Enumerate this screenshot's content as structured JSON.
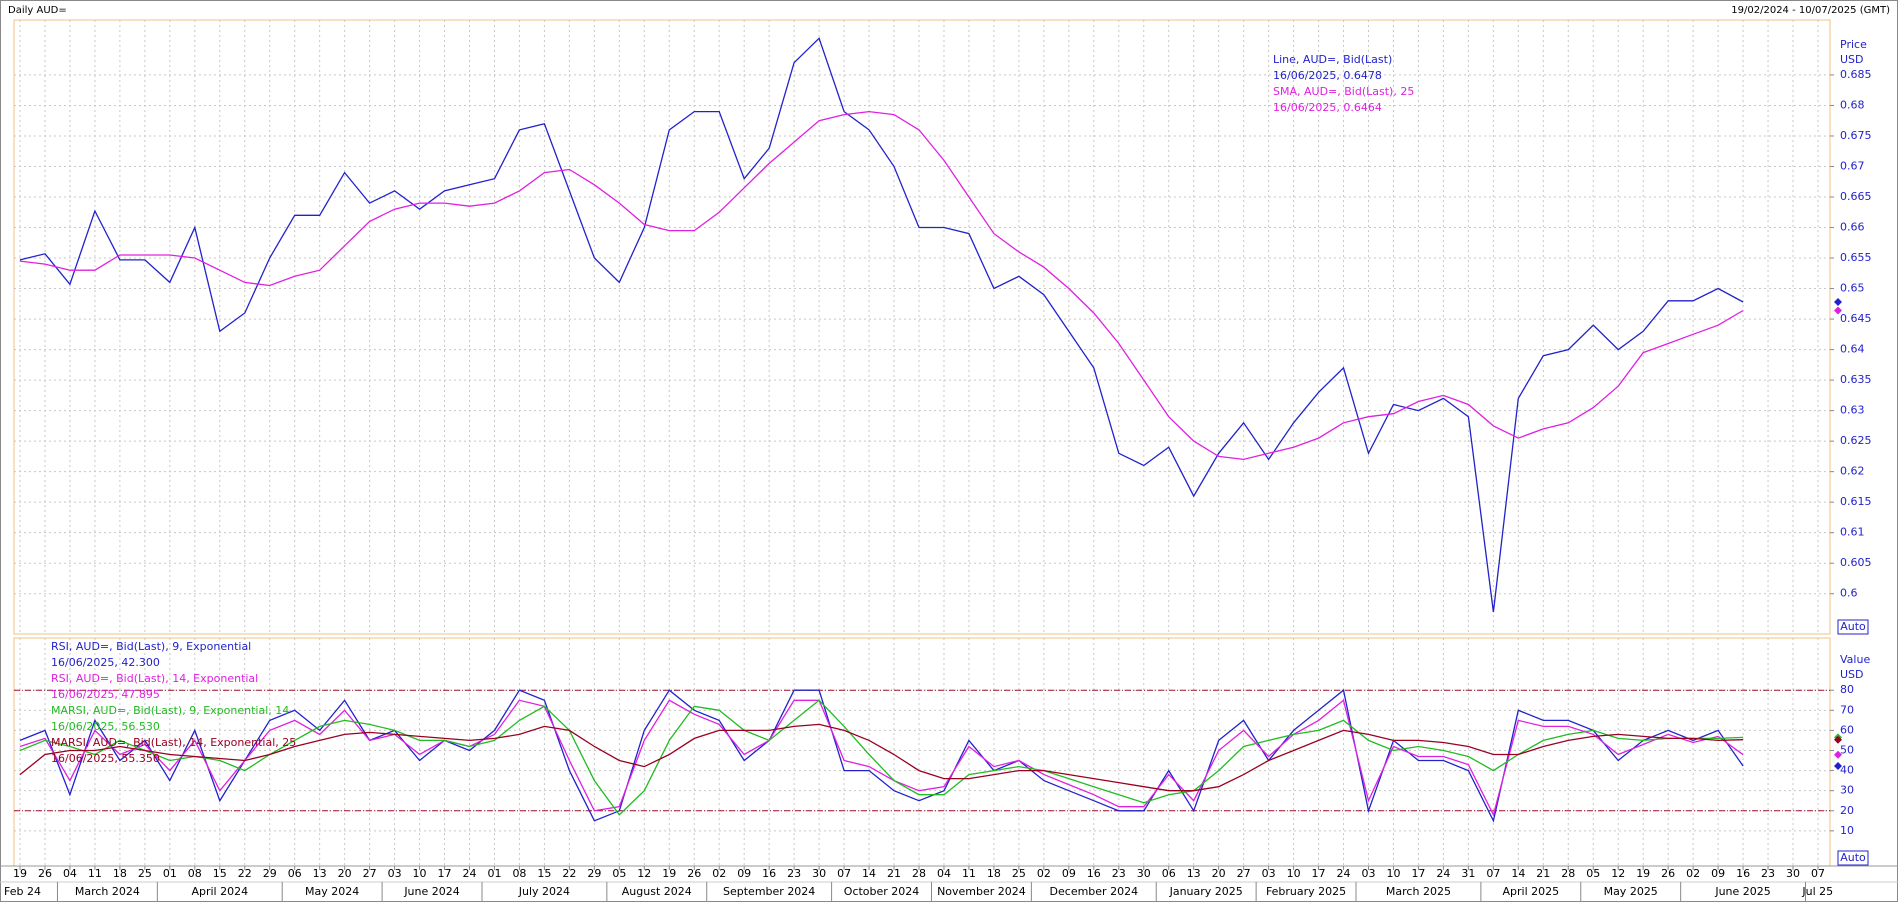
{
  "header": {
    "title": "Daily AUD=",
    "date_range": "19/02/2024 - 10/07/2025 (GMT)"
  },
  "x_axis": {
    "categories": [
      "19",
      "26",
      "04",
      "11",
      "18",
      "25",
      "01",
      "08",
      "15",
      "22",
      "29",
      "06",
      "13",
      "20",
      "27",
      "03",
      "10",
      "17",
      "24",
      "01",
      "08",
      "15",
      "22",
      "29",
      "05",
      "12",
      "19",
      "26",
      "02",
      "09",
      "16",
      "23",
      "30",
      "07",
      "14",
      "21",
      "28",
      "04",
      "11",
      "18",
      "25",
      "02",
      "09",
      "16",
      "23",
      "30",
      "06",
      "13",
      "20",
      "27",
      "03",
      "10",
      "17",
      "24",
      "03",
      "10",
      "17",
      "24",
      "31",
      "07",
      "14",
      "21",
      "28",
      "05",
      "12",
      "19",
      "26",
      "02",
      "09",
      "16",
      "23",
      "30",
      "07"
    ],
    "months": [
      "Feb 24",
      "March 2024",
      "April 2024",
      "May 2024",
      "June 2024",
      "July 2024",
      "August 2024",
      "September 2024",
      "October 2024",
      "November 2024",
      "December 2024",
      "January 2025",
      "February 2025",
      "March 2025",
      "April 2025",
      "May 2025",
      "June 2025",
      "Jul 25"
    ]
  },
  "chart_data": [
    {
      "type": "line",
      "y_label": "Price",
      "y_unit": "USD",
      "scale_mode": "Auto",
      "grid": true,
      "ylim": [
        0.5934,
        0.694
      ],
      "yticks": [
        0.6,
        0.605,
        0.61,
        0.615,
        0.62,
        0.625,
        0.63,
        0.635,
        0.64,
        0.645,
        0.65,
        0.655,
        0.66,
        0.665,
        0.67,
        0.675,
        0.68,
        0.685
      ],
      "series": [
        {
          "name": "Line, AUD=, Bid(Last)",
          "last_label": "16/06/2025, 0.6478",
          "color": "#2222cc",
          "values": [
            0.6547,
            0.6557,
            0.6507,
            0.6627,
            0.6547,
            0.6547,
            0.651,
            0.66,
            0.643,
            0.646,
            0.655,
            0.662,
            0.662,
            0.669,
            0.664,
            0.666,
            0.663,
            0.666,
            0.667,
            0.668,
            0.676,
            0.677,
            0.666,
            0.655,
            0.651,
            0.66,
            0.676,
            0.679,
            0.679,
            0.668,
            0.673,
            0.687,
            0.691,
            0.679,
            0.676,
            0.67,
            0.66,
            0.66,
            0.659,
            0.65,
            0.652,
            0.649,
            0.643,
            0.637,
            0.623,
            0.621,
            0.624,
            0.616,
            0.623,
            0.628,
            0.622,
            0.628,
            0.633,
            0.637,
            0.623,
            0.631,
            0.63,
            0.632,
            0.629,
            0.597,
            0.632,
            0.639,
            0.64,
            0.644,
            0.64,
            0.643,
            0.648,
            0.648,
            0.65,
            0.6478,
            null,
            null,
            null
          ]
        },
        {
          "name": "SMA, AUD=, Bid(Last),  25",
          "last_label": "16/06/2025, 0.6464",
          "color": "#e020e0",
          "values": [
            0.6545,
            0.654,
            0.653,
            0.653,
            0.6555,
            0.6555,
            0.6555,
            0.655,
            0.653,
            0.651,
            0.6505,
            0.652,
            0.653,
            0.657,
            0.661,
            0.663,
            0.664,
            0.664,
            0.6635,
            0.664,
            0.666,
            0.669,
            0.6695,
            0.667,
            0.664,
            0.6605,
            0.6595,
            0.6595,
            0.6625,
            0.6665,
            0.6705,
            0.674,
            0.6775,
            0.6785,
            0.679,
            0.6785,
            0.676,
            0.671,
            0.665,
            0.659,
            0.656,
            0.6535,
            0.65,
            0.646,
            0.641,
            0.635,
            0.629,
            0.625,
            0.6225,
            0.622,
            0.623,
            0.624,
            0.6255,
            0.628,
            0.629,
            0.6295,
            0.6315,
            0.6325,
            0.631,
            0.6275,
            0.6255,
            0.627,
            0.628,
            0.6305,
            0.634,
            0.6395,
            0.641,
            0.6425,
            0.644,
            0.6464,
            null,
            null,
            null
          ]
        }
      ]
    },
    {
      "type": "line",
      "y_label": "Value",
      "y_unit": "USD",
      "scale_mode": "Auto",
      "grid": true,
      "ylim": [
        -7.5,
        106
      ],
      "yticks": [
        10,
        20,
        30,
        40,
        50,
        60,
        70,
        80
      ],
      "levels": [
        20,
        80
      ],
      "series": [
        {
          "name": "RSI, AUD=, Bid(Last),  9, Exponential",
          "last_label": "16/06/2025, 42.300",
          "color": "#2222cc",
          "values": [
            55,
            60,
            28,
            65,
            45,
            55,
            35,
            60,
            25,
            45,
            65,
            70,
            60,
            75,
            55,
            60,
            45,
            55,
            50,
            60,
            80,
            75,
            40,
            15,
            20,
            60,
            80,
            70,
            65,
            45,
            55,
            80,
            80,
            40,
            40,
            30,
            25,
            30,
            55,
            40,
            45,
            35,
            30,
            25,
            20,
            20,
            40,
            20,
            55,
            65,
            45,
            60,
            70,
            80,
            20,
            55,
            45,
            45,
            40,
            15,
            70,
            65,
            65,
            60,
            45,
            55,
            60,
            55,
            60,
            42.3,
            null,
            null,
            null
          ]
        },
        {
          "name": "RSI, AUD=, Bid(Last),  14, Exponential",
          "last_label": "16/06/2025, 47.895",
          "color": "#e020e0",
          "values": [
            52,
            56,
            35,
            60,
            48,
            53,
            40,
            55,
            30,
            45,
            60,
            65,
            58,
            70,
            55,
            58,
            48,
            55,
            52,
            58,
            75,
            72,
            45,
            20,
            22,
            55,
            75,
            68,
            63,
            48,
            55,
            75,
            75,
            45,
            42,
            35,
            30,
            32,
            52,
            42,
            45,
            38,
            33,
            28,
            22,
            22,
            38,
            25,
            50,
            60,
            47,
            58,
            65,
            75,
            25,
            52,
            47,
            47,
            43,
            18,
            65,
            62,
            62,
            58,
            48,
            53,
            58,
            54,
            57,
            47.895,
            null,
            null,
            null
          ]
        },
        {
          "name": "MARSI, AUD=, Bid(Last),  9, Exponential, 14",
          "last_label": "16/06/2025, 56.530",
          "color": "#22bb22",
          "values": [
            50,
            55,
            52,
            48,
            55,
            50,
            45,
            47,
            45,
            40,
            48,
            55,
            62,
            65,
            63,
            60,
            55,
            55,
            52,
            55,
            65,
            72,
            60,
            35,
            18,
            30,
            55,
            72,
            70,
            60,
            55,
            65,
            75,
            62,
            48,
            35,
            28,
            28,
            38,
            40,
            42,
            40,
            36,
            32,
            28,
            24,
            28,
            30,
            40,
            52,
            55,
            58,
            60,
            65,
            55,
            50,
            52,
            50,
            47,
            40,
            48,
            55,
            58,
            60,
            56,
            55,
            56,
            56,
            56,
            56.53,
            null,
            null,
            null
          ]
        },
        {
          "name": "MARSI, AUD=, Bid(Last),  14, Exponential, 25",
          "last_label": "16/06/2025, 55.350",
          "color": "#990022",
          "values": [
            38,
            48,
            50,
            50,
            52,
            50,
            48,
            47,
            46,
            45,
            48,
            52,
            55,
            58,
            59,
            58,
            57,
            56,
            55,
            56,
            58,
            62,
            60,
            52,
            45,
            42,
            48,
            56,
            60,
            60,
            60,
            62,
            63,
            60,
            55,
            48,
            40,
            36,
            36,
            38,
            40,
            40,
            38,
            36,
            34,
            32,
            30,
            30,
            32,
            38,
            45,
            50,
            55,
            60,
            58,
            55,
            55,
            54,
            52,
            48,
            48,
            52,
            55,
            57,
            58,
            57,
            56,
            56,
            55,
            55.35,
            null,
            null,
            null
          ]
        }
      ]
    }
  ]
}
